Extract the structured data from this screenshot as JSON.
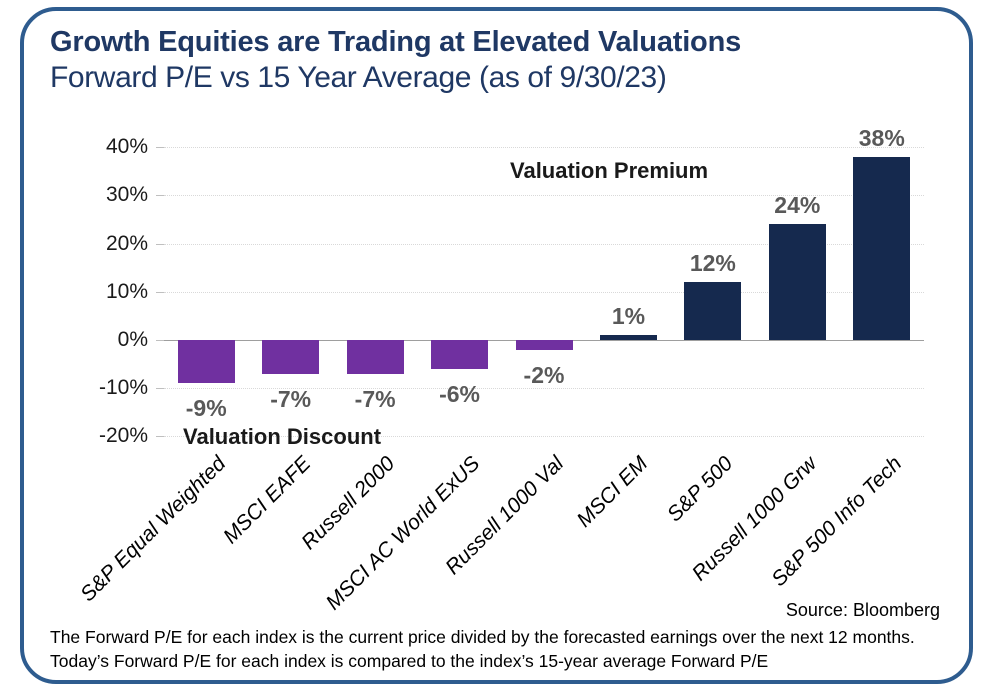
{
  "title": "Growth Equities are Trading at Elevated Valuations",
  "subtitle": "Forward P/E vs 15 Year Average (as of 9/30/23)",
  "annotations": {
    "premium": "Valuation Premium",
    "discount": "Valuation Discount"
  },
  "source": "Source: Bloomberg",
  "footnotes": [
    "The Forward P/E for each index is the current price divided by the forecasted earnings over the next 12 months.",
    "Today’s Forward P/E for each index is compared to the index’s 15-year average Forward P/E"
  ],
  "colors": {
    "positive_bar": "#15294e",
    "negative_bar": "#7030a0",
    "title_navy": "#1f3864",
    "border_blue": "#2e5c8f",
    "data_label_gray": "#595959"
  },
  "chart_data": {
    "type": "bar",
    "categories": [
      "S&P Equal Weighted",
      "MSCI EAFE",
      "Russell 2000",
      "MSCI AC World ExUS",
      "Russell 1000 Val",
      "MSCI EM",
      "S&P 500",
      "Russell 1000 Grw",
      "S&P 500 Info Tech"
    ],
    "values": [
      -9,
      -7,
      -7,
      -6,
      -2,
      1,
      12,
      24,
      38
    ],
    "value_labels": [
      "-9%",
      "-7%",
      "-7%",
      "-6%",
      "-2%",
      "1%",
      "12%",
      "24%",
      "38%"
    ],
    "yticks": [
      40,
      30,
      20,
      10,
      0,
      -10,
      -20
    ],
    "ytick_labels": [
      "40%",
      "30%",
      "20%",
      "10%",
      "0%",
      "-10%",
      "-20%"
    ],
    "ylim": [
      -20,
      40
    ],
    "grid": "horizontal-dotted",
    "legend": "none",
    "title": "Growth Equities are Trading at Elevated Valuations",
    "xlabel": "",
    "ylabel": ""
  }
}
